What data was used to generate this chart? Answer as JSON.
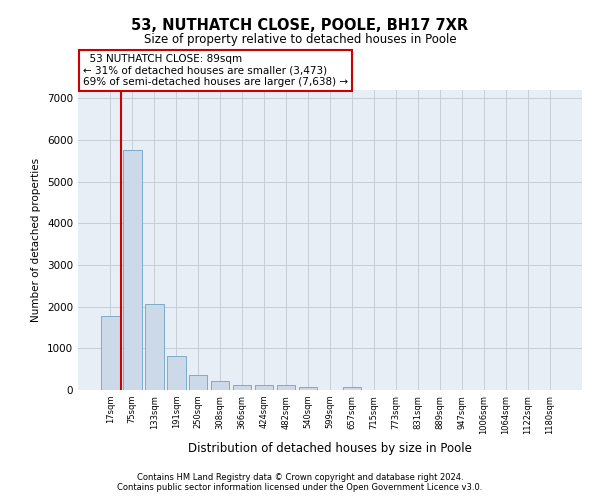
{
  "title_line1": "53, NUTHATCH CLOSE, POOLE, BH17 7XR",
  "title_line2": "Size of property relative to detached houses in Poole",
  "xlabel": "Distribution of detached houses by size in Poole",
  "ylabel": "Number of detached properties",
  "footnote_line1": "Contains HM Land Registry data © Crown copyright and database right 2024.",
  "footnote_line2": "Contains public sector information licensed under the Open Government Licence v3.0.",
  "categories": [
    "17sqm",
    "75sqm",
    "133sqm",
    "191sqm",
    "250sqm",
    "308sqm",
    "366sqm",
    "424sqm",
    "482sqm",
    "540sqm",
    "599sqm",
    "657sqm",
    "715sqm",
    "773sqm",
    "831sqm",
    "889sqm",
    "947sqm",
    "1006sqm",
    "1064sqm",
    "1122sqm",
    "1180sqm"
  ],
  "values": [
    1780,
    5750,
    2060,
    820,
    360,
    210,
    130,
    110,
    110,
    75,
    0,
    70,
    0,
    0,
    0,
    0,
    0,
    0,
    0,
    0,
    0
  ],
  "bar_color": "#ccd9e8",
  "bar_edge_color": "#7aaccc",
  "property_label": "53 NUTHATCH CLOSE: 89sqm",
  "pct_smaller": 31,
  "count_smaller": 3473,
  "pct_larger_semi": 69,
  "count_larger_semi": 7638,
  "red_line_color": "#cc0000",
  "annotation_border_color": "#cc0000",
  "ylim_max": 7200,
  "yticks": [
    0,
    1000,
    2000,
    3000,
    4000,
    5000,
    6000,
    7000
  ],
  "plot_bg_color": "#e8eef5",
  "grid_color": "#c5cdd8"
}
